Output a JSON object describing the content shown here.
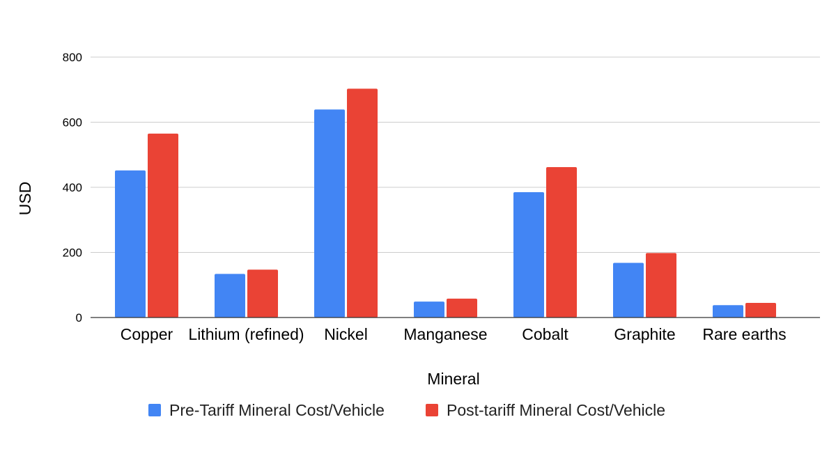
{
  "chart_data": {
    "type": "bar",
    "title": "",
    "xlabel": "Mineral",
    "ylabel": "USD",
    "ylim": [
      0,
      800
    ],
    "yticks": [
      0,
      200,
      400,
      600,
      800
    ],
    "grid": true,
    "legend_position": "bottom",
    "categories": [
      "Copper",
      "Lithium (refined)",
      "Nickel",
      "Manganese",
      "Cobalt",
      "Graphite",
      "Rare earths"
    ],
    "series": [
      {
        "name": "Pre-Tariff Mineral Cost/Vehicle",
        "color": "#4285F4",
        "values": [
          452,
          134,
          639,
          49,
          385,
          168,
          38
        ]
      },
      {
        "name": "Post-tariff Mineral Cost/Vehicle",
        "color": "#EA4335",
        "values": [
          565,
          147,
          703,
          58,
          462,
          198,
          45
        ]
      }
    ]
  }
}
